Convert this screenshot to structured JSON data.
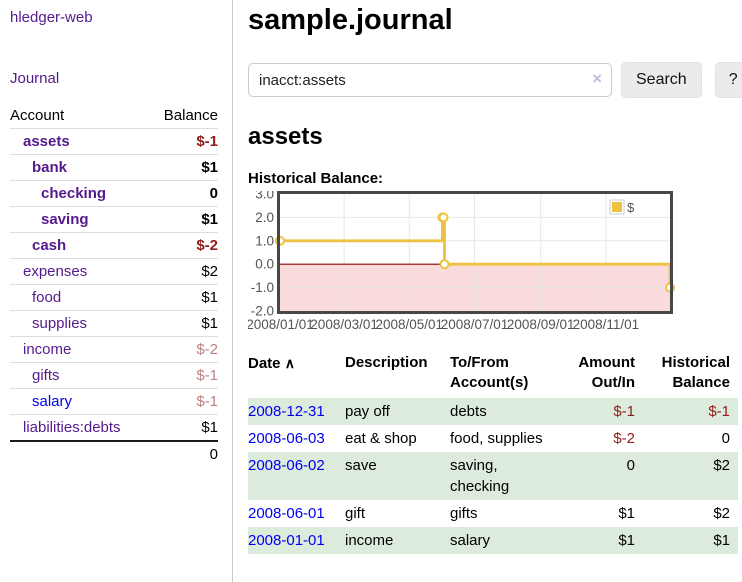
{
  "colors": {
    "link_purple": "#551a8b",
    "link_blue": "#0000ee",
    "negative": "#8f1d1d",
    "negative_dim": "#bf7f7f",
    "row_green": "#dcebdc",
    "series_gold": "#edc240"
  },
  "sidebar": {
    "app_title": "hledger-web",
    "nav_journal": "Journal",
    "header": {
      "account": "Account",
      "balance": "Balance"
    },
    "accounts": [
      {
        "name": "assets",
        "depth": 1,
        "bold": true,
        "link_color": "purple",
        "balance": "$-1",
        "balance_class": "neg"
      },
      {
        "name": "bank",
        "depth": 2,
        "bold": true,
        "link_color": "purple",
        "balance": "$1",
        "balance_class": ""
      },
      {
        "name": "checking",
        "depth": 3,
        "bold": true,
        "link_color": "purple",
        "balance": "0",
        "balance_class": ""
      },
      {
        "name": "saving",
        "depth": 3,
        "bold": true,
        "link_color": "purple",
        "balance": "$1",
        "balance_class": ""
      },
      {
        "name": "cash",
        "depth": 2,
        "bold": true,
        "link_color": "purple",
        "balance": "$-2",
        "balance_class": "neg"
      },
      {
        "name": "expenses",
        "depth": 1,
        "bold": false,
        "link_color": "purple",
        "balance": "$2",
        "balance_class": ""
      },
      {
        "name": "food",
        "depth": 2,
        "bold": false,
        "link_color": "purple",
        "balance": "$1",
        "balance_class": ""
      },
      {
        "name": "supplies",
        "depth": 2,
        "bold": false,
        "link_color": "purple",
        "balance": "$1",
        "balance_class": ""
      },
      {
        "name": "income",
        "depth": 1,
        "bold": false,
        "link_color": "purple",
        "balance": "$-2",
        "balance_class": "negdim"
      },
      {
        "name": "gifts",
        "depth": 2,
        "bold": false,
        "link_color": "purple",
        "balance": "$-1",
        "balance_class": "negdim"
      },
      {
        "name": "salary",
        "depth": 2,
        "bold": false,
        "link_color": "blue",
        "balance": "$-1",
        "balance_class": "negdim"
      },
      {
        "name": "liabilities:debts",
        "depth": 1,
        "bold": false,
        "link_color": "purple",
        "balance": "$1",
        "balance_class": ""
      }
    ],
    "total": "0"
  },
  "main": {
    "title": "sample.journal",
    "search": {
      "value": "inacct:assets",
      "clear_icon": "×",
      "button_label": "Search",
      "help_label": "?"
    },
    "account_heading": "assets",
    "chart_label": "Historical Balance:"
  },
  "chart_data": {
    "type": "line",
    "step": true,
    "title": "Historical Balance",
    "legend": "$",
    "legend_position": "top-right",
    "series": [
      {
        "name": "$",
        "color": "#edc240",
        "points": [
          {
            "date": "2008-01-01",
            "value": 1
          },
          {
            "date": "2008-06-01",
            "value": 2
          },
          {
            "date": "2008-06-02",
            "value": 2
          },
          {
            "date": "2008-06-03",
            "value": 0
          },
          {
            "date": "2008-12-31",
            "value": -1
          }
        ]
      }
    ],
    "ylim": [
      -2,
      3
    ],
    "yticks": [
      "3.0",
      "2.0",
      "1.0",
      "0.0",
      "-1.0",
      "-2.0"
    ],
    "xrange": [
      "2008-01-01",
      "2008-12-31"
    ],
    "xticks": [
      "2008/01/01",
      "2008/03/01",
      "2008/05/01",
      "2008/07/01",
      "2008/09/01",
      "2008/11/01"
    ],
    "grid": true,
    "zero_line_color": "#8b0000",
    "negative_region_color": "#f9dbdb"
  },
  "table": {
    "headers": {
      "date": "Date",
      "sort_arrow": "∧",
      "description": "Description",
      "tofrom_line1": "To/From",
      "tofrom_line2": "Account(s)",
      "amount_line1": "Amount",
      "amount_line2": "Out/In",
      "balance_line1": "Historical",
      "balance_line2": "Balance"
    },
    "rows": [
      {
        "date": "2008-12-31",
        "description": "pay off",
        "accounts": "debts",
        "amount": "$-1",
        "amount_neg": true,
        "balance": "$-1",
        "balance_neg": true
      },
      {
        "date": "2008-06-03",
        "description": "eat & shop",
        "accounts": "food, supplies",
        "amount": "$-2",
        "amount_neg": true,
        "balance": "0",
        "balance_neg": false
      },
      {
        "date": "2008-06-02",
        "description": "save",
        "accounts": "saving, checking",
        "amount": "0",
        "amount_neg": false,
        "balance": "$2",
        "balance_neg": false
      },
      {
        "date": "2008-06-01",
        "description": "gift",
        "accounts": "gifts",
        "amount": "$1",
        "amount_neg": false,
        "balance": "$2",
        "balance_neg": false
      },
      {
        "date": "2008-01-01",
        "description": "income",
        "accounts": "salary",
        "amount": "$1",
        "amount_neg": false,
        "balance": "$1",
        "balance_neg": false
      }
    ]
  }
}
